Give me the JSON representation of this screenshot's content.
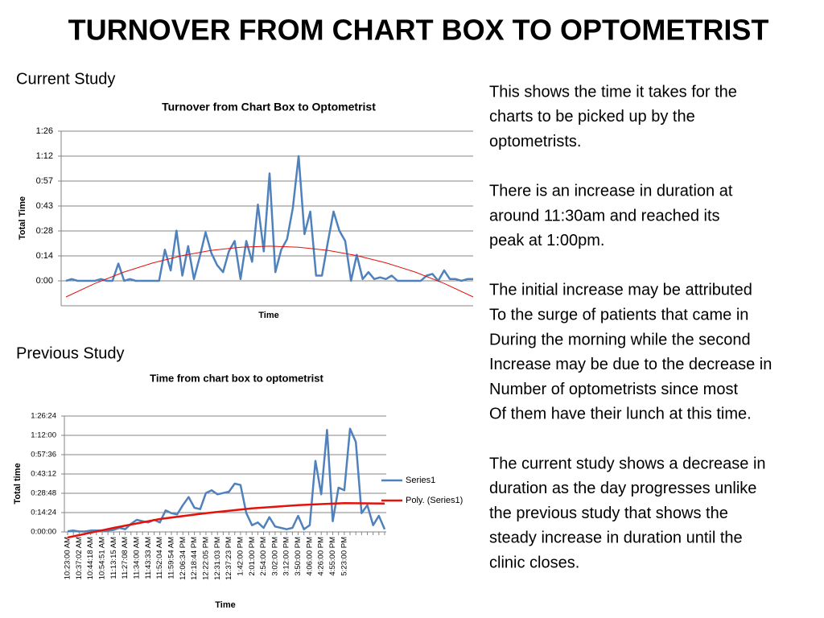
{
  "title": "TURNOVER FROM CHART BOX TO OPTOMETRIST",
  "current_label": "Current Study",
  "previous_label": "Previous Study",
  "notes": [
    [
      "This shows the time it takes for the",
      "charts to be picked up by the",
      "optometrists."
    ],
    [
      "There is an increase in duration at",
      "around 11:30am and reached its",
      "peak at 1:00pm."
    ],
    [
      "The initial increase may be attributed",
      "To the surge of patients that came in",
      "During the morning while the second",
      "Increase may be due to the decrease in",
      "Number of optometrists since most",
      "Of them have their lunch at this time."
    ],
    [
      "The current study shows a decrease in",
      "duration as the day progresses unlike",
      "the previous study that shows the",
      "steady increase in duration until the",
      "clinic closes."
    ]
  ],
  "chart_data": [
    {
      "type": "line",
      "title": "Turnover from Chart Box to Optometrist",
      "xlabel": "Time",
      "ylabel": "Total Time",
      "ylim": [
        -14.4,
        86.4
      ],
      "yticks": [
        {
          "value": 0,
          "label": "0:00"
        },
        {
          "value": 14.4,
          "label": "0:14"
        },
        {
          "value": 28.8,
          "label": "0:28"
        },
        {
          "value": 43.2,
          "label": "0:43"
        },
        {
          "value": 57.6,
          "label": "0:57"
        },
        {
          "value": 72,
          "label": "1:12"
        },
        {
          "value": 86.4,
          "label": "1:26"
        }
      ],
      "grid": true,
      "series": [
        {
          "color": "#4f81bd",
          "values": [
            0,
            1,
            0,
            0,
            0,
            0,
            1,
            0,
            0,
            10,
            0,
            1,
            0,
            0,
            0,
            0,
            0,
            18,
            6,
            29,
            3,
            20,
            1,
            14,
            28,
            16,
            9,
            5,
            17,
            23,
            1,
            23,
            11,
            44,
            17,
            62,
            5,
            18,
            24,
            42,
            72,
            27,
            40,
            3,
            3,
            22,
            40,
            29,
            23,
            0,
            15,
            1,
            5,
            1,
            2,
            1,
            3,
            0,
            0,
            0,
            0,
            0,
            3,
            4,
            0,
            6,
            1,
            1,
            0,
            1,
            1
          ]
        },
        {
          "color": "#e3120b",
          "x": [
            0,
            5,
            10,
            15,
            20,
            25,
            30,
            35,
            40,
            45,
            50,
            55,
            60,
            65,
            70
          ],
          "values": [
            -9.3,
            -1.5,
            5.1,
            10.4,
            14.6,
            17.6,
            19.4,
            20,
            19.4,
            17.6,
            14.6,
            10.4,
            5.1,
            -1.5,
            -9.3
          ]
        }
      ]
    },
    {
      "type": "line",
      "title": "Time from chart box to optometrist",
      "xlabel": "Time",
      "ylabel": "Total time",
      "ylim": [
        0,
        86.4
      ],
      "yticks": [
        {
          "value": 0,
          "label": "0:00:00"
        },
        {
          "value": 14.4,
          "label": "0:14:24"
        },
        {
          "value": 28.8,
          "label": "0:28:48"
        },
        {
          "value": 43.2,
          "label": "0:43:12"
        },
        {
          "value": 57.6,
          "label": "0:57:36"
        },
        {
          "value": 72,
          "label": "1:12:00"
        },
        {
          "value": 86.4,
          "label": "1:26:24"
        }
      ],
      "grid": true,
      "legend": "right",
      "categories": [
        "10:23:00 AM",
        null,
        "10:37:02 AM",
        null,
        "10:44:18 AM",
        null,
        "10:54:51 AM",
        null,
        "11:13:15 AM",
        null,
        "11:27:08 AM",
        null,
        "11:34:00 AM",
        null,
        "11:43:33 AM",
        null,
        "11:52:04 AM",
        null,
        "11:59:54 AM",
        null,
        "12:06:34 PM",
        null,
        "12:18:44 PM",
        null,
        "12:22:05 PM",
        null,
        "12:31:03 PM",
        null,
        "12:37:23 PM",
        null,
        "1:42:00 PM",
        null,
        "2:01:00 PM",
        null,
        "2:54:00 PM",
        null,
        "3:02:00 PM",
        null,
        "3:12:00 PM",
        null,
        "3:50:00 PM",
        null,
        "4:06:00 PM",
        null,
        "4:26:00 PM",
        null,
        "4:55:00 PM",
        null,
        "5:23:00 PM",
        null,
        null,
        null,
        null,
        null,
        null,
        null
      ],
      "series": [
        {
          "name": "Series1",
          "color": "#4f81bd",
          "width": 2.5,
          "values": [
            0.5,
            1,
            0.3,
            0.3,
            1,
            1,
            1,
            1,
            1.5,
            3,
            2,
            6,
            9,
            8,
            7,
            9,
            7,
            16,
            14,
            13,
            20,
            26,
            18,
            17,
            29,
            31,
            28,
            29,
            30,
            36,
            35,
            14,
            5,
            7,
            3,
            11,
            4,
            3,
            2,
            3,
            12,
            2,
            5,
            53,
            28,
            76,
            8,
            33,
            31,
            77,
            67,
            14,
            20,
            5,
            12,
            2
          ]
        },
        {
          "name": "Poly. (Series1)",
          "color": "#e3120b",
          "width": 2.5,
          "x": [
            0,
            8,
            16,
            24,
            32,
            40,
            48,
            55
          ],
          "values": [
            -4.2,
            3,
            9.6,
            14,
            17.5,
            20,
            21.4,
            21.2
          ]
        }
      ]
    }
  ]
}
